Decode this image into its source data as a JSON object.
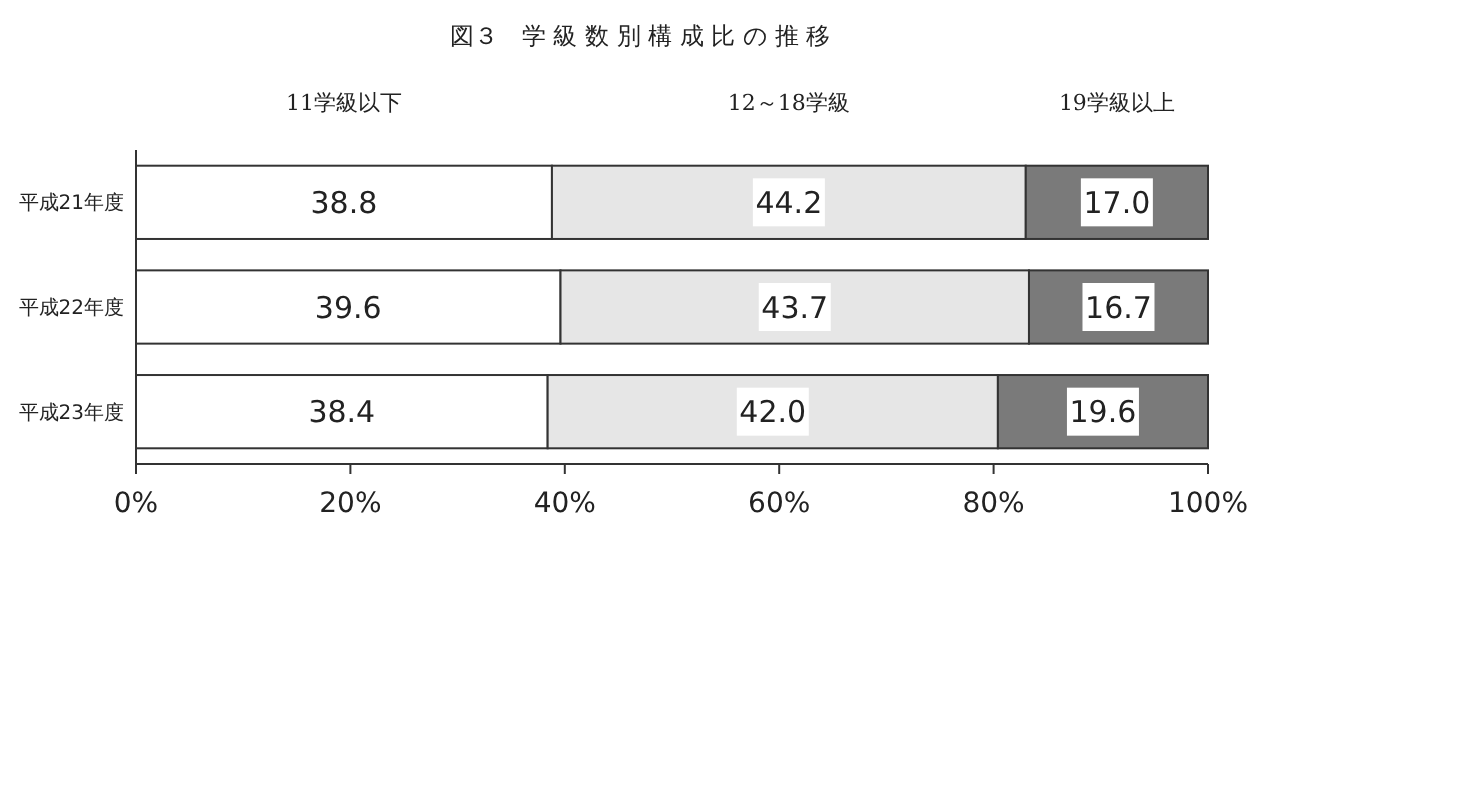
{
  "chart_data": {
    "type": "bar",
    "title": "図３　学 級 数 別 構 成 比 の 推 移",
    "orientation": "horizontal",
    "stacked": true,
    "categories": [
      "平成21年度",
      "平成22年度",
      "平成23年度"
    ],
    "series": [
      {
        "name": "11学級以下",
        "color": "#ffffff",
        "values": [
          38.8,
          39.6,
          38.4
        ],
        "value_labels": [
          "38.8",
          "39.6",
          "38.4"
        ]
      },
      {
        "name": "12～18学級",
        "color": "#e6e6e6",
        "values": [
          44.2,
          43.7,
          42.0
        ],
        "value_labels": [
          "44.2",
          "43.7",
          "42.0"
        ]
      },
      {
        "name": "19学級以上",
        "color": "#7a7a7a",
        "values": [
          17.0,
          16.7,
          19.6
        ],
        "value_labels": [
          "17.0",
          "16.7",
          "19.6"
        ]
      }
    ],
    "xlim": [
      0,
      100
    ],
    "xticks": [
      {
        "value": 0,
        "label": "0%"
      },
      {
        "value": 20,
        "label": "20%"
      },
      {
        "value": 40,
        "label": "40%"
      },
      {
        "value": 60,
        "label": "60%"
      },
      {
        "value": 80,
        "label": "80%"
      },
      {
        "value": 100,
        "label": "100%"
      }
    ],
    "legend": "top",
    "grid": false
  }
}
